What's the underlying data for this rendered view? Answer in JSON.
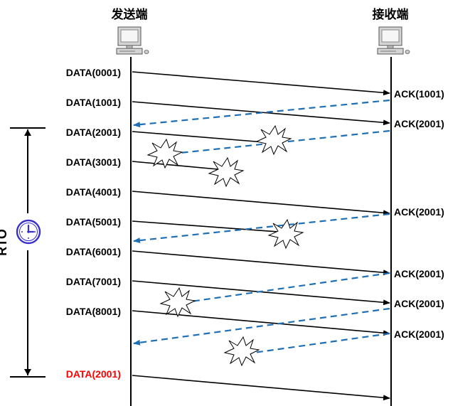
{
  "endpoints": {
    "sender": "发送端",
    "receiver": "接收端"
  },
  "icons": {
    "computer": "desktop-computer-icon",
    "loss": "burst-loss-icon",
    "timer": "clock-icon"
  },
  "colors": {
    "data_arrow": "#000000",
    "ack_arrow": "#1f6fb5",
    "retransmit_label": "#ff0000",
    "timer_icon": "#3a2fc8"
  },
  "timer": {
    "label": "RTO"
  },
  "data_segments": [
    {
      "label": "DATA(0001)",
      "lost": false
    },
    {
      "label": "DATA(1001)",
      "lost": false
    },
    {
      "label": "DATA(2001)",
      "lost": true
    },
    {
      "label": "DATA(3001)",
      "lost": true
    },
    {
      "label": "DATA(4001)",
      "lost": false
    },
    {
      "label": "DATA(5001)",
      "lost": true
    },
    {
      "label": "DATA(6001)",
      "lost": false
    },
    {
      "label": "DATA(7001)",
      "lost": false
    },
    {
      "label": "DATA(8001)",
      "lost": false
    },
    {
      "label": "DATA(2001)",
      "lost": false,
      "retransmission": true
    }
  ],
  "acks": [
    {
      "label": "ACK(1001)",
      "delivered": true
    },
    {
      "label": "ACK(2001)",
      "delivered": false
    },
    {
      "label": "ACK(2001)",
      "delivered": true
    },
    {
      "label": "ACK(2001)",
      "delivered": false
    },
    {
      "label": "ACK(2001)",
      "delivered": false
    },
    {
      "label": "ACK(2001)",
      "delivered": true
    }
  ]
}
